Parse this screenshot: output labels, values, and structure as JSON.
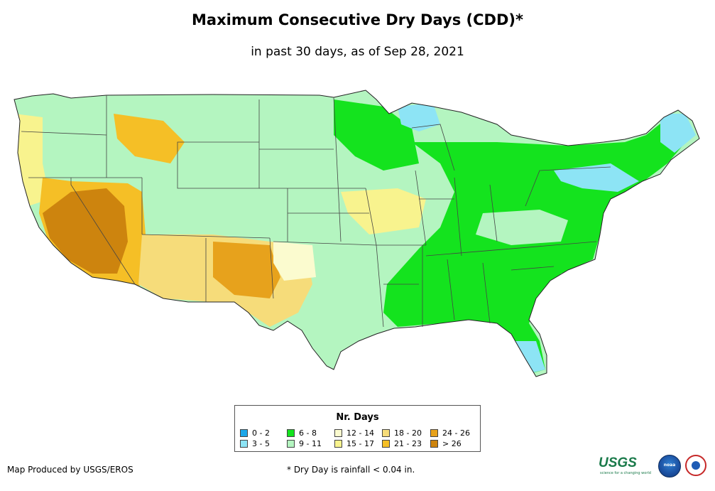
{
  "title": "Maximum Consecutive Dry Days (CDD)*",
  "subtitle": "in past 30 days, as of Sep 28, 2021",
  "legend": {
    "title": "Nr. Days",
    "items": [
      {
        "label": "0 - 2",
        "color": "#1ca6e8"
      },
      {
        "label": "3 - 5",
        "color": "#8de4f5"
      },
      {
        "label": "6 - 8",
        "color": "#14e31e"
      },
      {
        "label": "9 - 11",
        "color": "#b4f5c0"
      },
      {
        "label": "12 - 14",
        "color": "#fbfbcf"
      },
      {
        "label": "15 - 17",
        "color": "#f8f38e"
      },
      {
        "label": "18 - 20",
        "color": "#f6dc7a"
      },
      {
        "label": "21 - 23",
        "color": "#f5bf26"
      },
      {
        "label": "24 - 26",
        "color": "#e7a21c"
      },
      {
        "label": "> 26",
        "color": "#cd840e"
      }
    ]
  },
  "credit": "Map Produced by USGS/EROS",
  "footnote": "* Dry Day is rainfall < 0.04 in.",
  "logos": {
    "usgs": "USGS",
    "usgs_tagline": "science for a changing world",
    "noaa": "noaa"
  }
}
